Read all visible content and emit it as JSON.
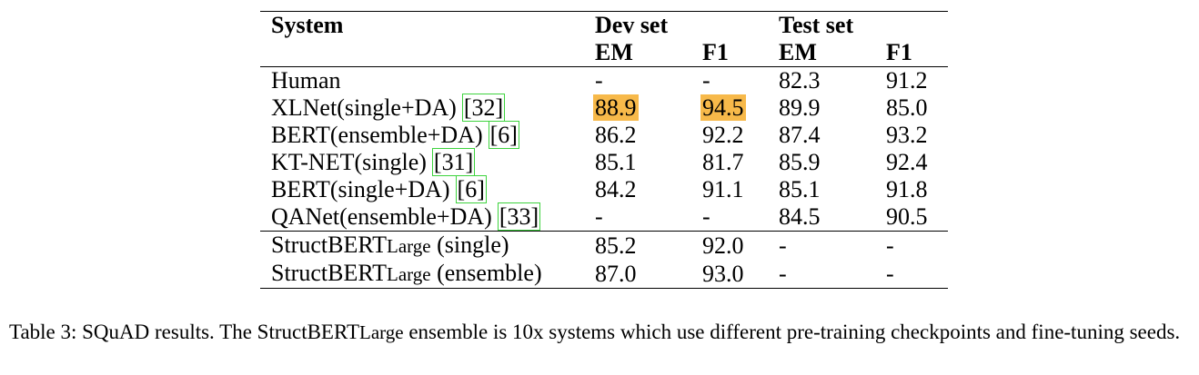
{
  "table": {
    "col_headers": {
      "system": "System",
      "dev_set": "Dev set",
      "test_set": "Test set",
      "dev_em": "EM",
      "dev_f1": "F1",
      "test_em": "EM",
      "test_f1": "F1"
    },
    "rows": [
      {
        "system": "Human",
        "dev_em": "-",
        "dev_f1": "-",
        "test_em": "82.3",
        "test_f1": "91.2"
      },
      {
        "system": "XLNet(single+DA)",
        "cite": "32",
        "dev_em": "88.9",
        "dev_f1": "94.5",
        "test_em": "89.9",
        "test_f1": "85.0"
      },
      {
        "system": "BERT(ensemble+DA)",
        "cite": "6",
        "dev_em": "86.2",
        "dev_f1": "92.2",
        "test_em": "87.4",
        "test_f1": "93.2"
      },
      {
        "system": "KT-NET(single)",
        "cite": "31",
        "dev_em": "85.1",
        "dev_f1": "81.7",
        "test_em": "85.9",
        "test_f1": "92.4"
      },
      {
        "system": "BERT(single+DA)",
        "cite": "6",
        "dev_em": "84.2",
        "dev_f1": "91.1",
        "test_em": "85.1",
        "test_f1": "91.8"
      },
      {
        "system": "QANet(ensemble+DA)",
        "cite": "33",
        "dev_em": "-",
        "dev_f1": "-",
        "test_em": "84.5",
        "test_f1": "90.5"
      }
    ],
    "ours": [
      {
        "system_main": "StructBERT",
        "system_sub": "Large",
        "system_rest": " (single)",
        "dev_em": "85.2",
        "dev_f1": "92.0",
        "test_em": "-",
        "test_f1": "-"
      },
      {
        "system_main": "StructBERT",
        "system_sub": "Large",
        "system_rest": " (ensemble)",
        "dev_em": "87.0",
        "dev_f1": "93.0",
        "test_em": "-",
        "test_f1": "-"
      }
    ],
    "highlight_color": "#f7b94a",
    "citation_box_color": "#3ed33e"
  },
  "caption": {
    "prefix": "Table 3: SQuAD results. The StructBERT",
    "sub": "Large",
    "rest": " ensemble is 10x systems which use different pre-training checkpoints and fine-tuning seeds."
  }
}
